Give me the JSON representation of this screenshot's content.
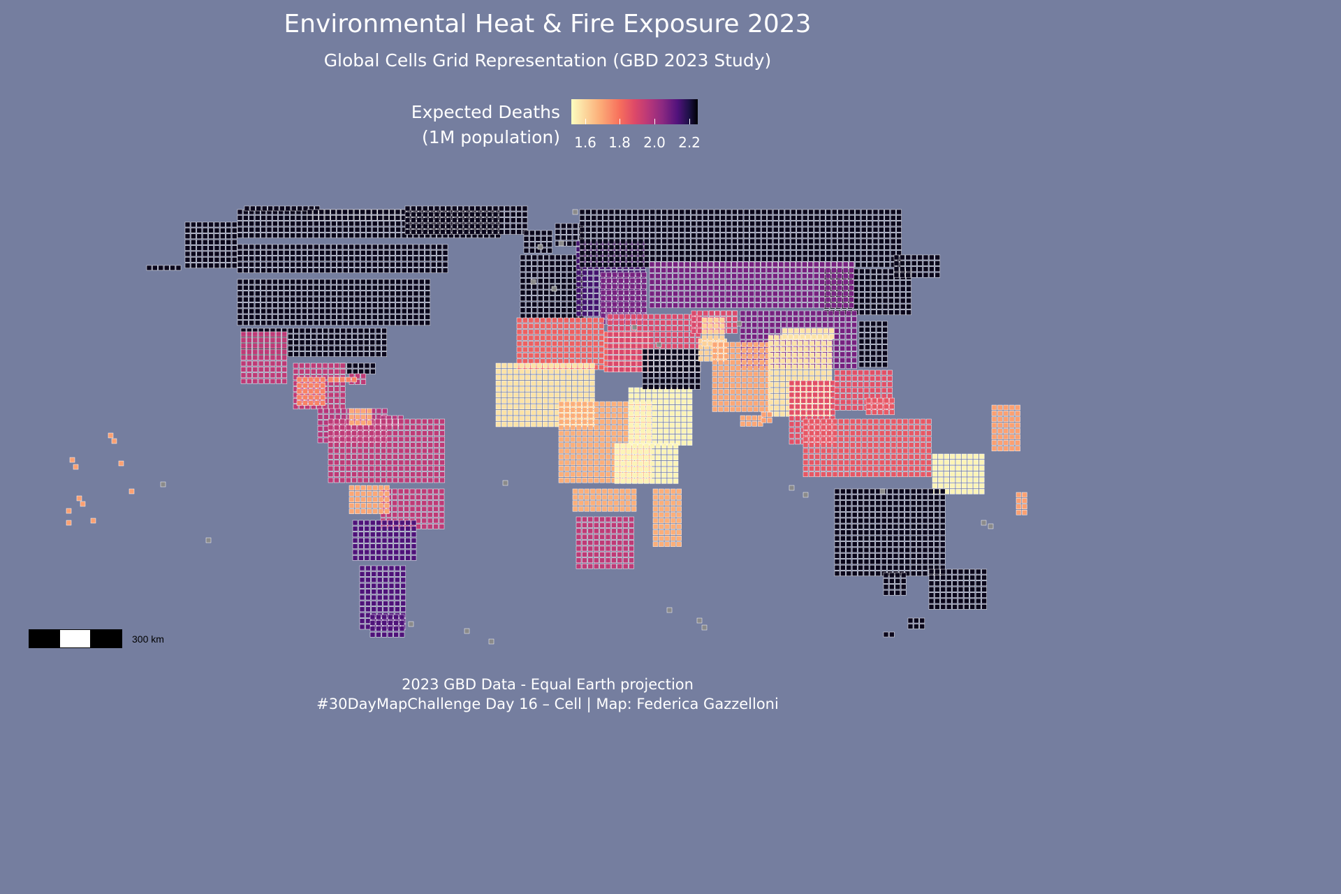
{
  "title": "Environmental Heat & Fire Exposure 2023",
  "subtitle": "Global Cells Grid Representation (GBD 2023 Study)",
  "legend": {
    "title_line1": "Expected Deaths",
    "title_line2": "(1M population)",
    "ticks": [
      "1.6",
      "1.8",
      "2.0",
      "2.2"
    ],
    "scale": "magma",
    "reversed": true,
    "range": [
      1.55,
      2.25
    ],
    "colors": [
      "#fcfdbf",
      "#fcb07a",
      "#f7705c",
      "#de4968",
      "#b5367a",
      "#8c2981",
      "#51127c",
      "#1d1147",
      "#000004"
    ]
  },
  "scale_bar": {
    "label": "300 km"
  },
  "caption": {
    "line1": "2023 GBD Data - Equal Earth projection",
    "line2": "#30DayMapChallenge Day 16 – Cell | Map: Federica Gazzelloni"
  },
  "map": {
    "projection": "Equal Earth",
    "background": "#757e9f",
    "no_data_color": "#8a8a8a",
    "cell_outline": "#ffffff"
  },
  "chart_data": {
    "type": "heatmap",
    "metric": "Expected Deaths (1M population)",
    "regions": [
      {
        "name": "North America (Canada, USA, Alaska)",
        "value": 2.22
      },
      {
        "name": "Greenland",
        "value": 2.22
      },
      {
        "name": "Mexico",
        "value": 1.88
      },
      {
        "name": "Central America",
        "value": 1.88
      },
      {
        "name": "Caribbean",
        "value": 1.7
      },
      {
        "name": "Northern South America",
        "value": 1.9
      },
      {
        "name": "Brazil",
        "value": 1.88
      },
      {
        "name": "Bolivia / Paraguay",
        "value": 1.65
      },
      {
        "name": "Southern Cone",
        "value": 2.08
      },
      {
        "name": "Western Europe",
        "value": 2.22
      },
      {
        "name": "Eastern Europe / Russia (west)",
        "value": 2.1
      },
      {
        "name": "Russia / Siberia (north)",
        "value": 2.22
      },
      {
        "name": "Kazakhstan / Mongolia",
        "value": 2.02
      },
      {
        "name": "North Africa",
        "value": 1.76
      },
      {
        "name": "Sahel / West Africa",
        "value": 1.58
      },
      {
        "name": "Central Africa",
        "value": 1.64
      },
      {
        "name": "East Africa",
        "value": 1.56
      },
      {
        "name": "Southern Africa",
        "value": 1.88
      },
      {
        "name": "Madagascar",
        "value": 1.64
      },
      {
        "name": "Middle East (Turkey, Iran)",
        "value": 1.82
      },
      {
        "name": "Arabian Peninsula",
        "value": 2.22
      },
      {
        "name": "Central Asia",
        "value": 1.6
      },
      {
        "name": "South Asia",
        "value": 1.65
      },
      {
        "name": "China",
        "value": 1.58
      },
      {
        "name": "Southeast Asia",
        "value": 1.8
      },
      {
        "name": "Indonesia",
        "value": 1.78
      },
      {
        "name": "Papua New Guinea",
        "value": 1.56
      },
      {
        "name": "Australia",
        "value": 2.22
      },
      {
        "name": "New Zealand",
        "value": 2.22
      },
      {
        "name": "Pacific Islands",
        "value": 1.66
      }
    ]
  }
}
